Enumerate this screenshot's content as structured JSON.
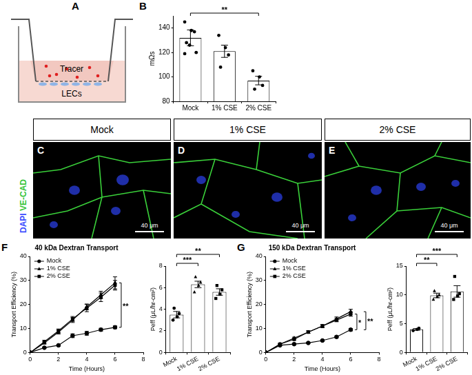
{
  "figure": {
    "panel_letters": [
      "A",
      "B",
      "C",
      "D",
      "E",
      "F",
      "G"
    ],
    "diagram": {
      "top_label": "Tracer",
      "bottom_label": "LECs"
    },
    "images": [
      {
        "title": "Mock",
        "scale_bar": "40 μm"
      },
      {
        "title": "1% CSE",
        "scale_bar": "40 μm"
      },
      {
        "title": "2% CSE",
        "scale_bar": "40 μm"
      }
    ],
    "stain_label": [
      {
        "text": "DAPI",
        "color": "#3a4bff"
      },
      {
        "text": "VE-CAD",
        "color": "#35c43a"
      }
    ]
  },
  "chart_data": [
    {
      "type": "bar",
      "y_label": "mΩs",
      "categories": [
        "Mock",
        "1% CSE",
        "2% CSE"
      ],
      "values": [
        132,
        121,
        97
      ],
      "errors": [
        6.5,
        5,
        3.5
      ],
      "points": [
        {
          "category": "Mock",
          "marker": "circle",
          "values": [
            145,
            138,
            137,
            128,
            126,
            120,
            119
          ]
        },
        {
          "category": "1% CSE",
          "marker": "circle",
          "values": [
            134,
            124,
            118,
            108
          ]
        },
        {
          "category": "2% CSE",
          "marker": "circle",
          "values": [
            105,
            100,
            93,
            90
          ]
        }
      ],
      "color": "#ffffff",
      "ylim": [
        80,
        150
      ],
      "yticks": [
        80,
        100,
        120,
        140
      ],
      "grid": false,
      "annotations": [
        {
          "text": "**",
          "from": "Mock",
          "to": "2% CSE"
        }
      ]
    },
    {
      "type": "line",
      "title": "40 kDa Dextran Transport",
      "x_label": "Time (Hours)",
      "y_label": "Transport Efficiency (%)",
      "x": [
        0,
        1,
        2,
        3,
        4,
        5,
        6
      ],
      "series": [
        {
          "name": "Mock",
          "marker": "circle",
          "color": "#000000",
          "values": [
            0,
            2,
            3,
            7,
            8,
            9.5,
            10.5
          ],
          "errors": [
            0,
            0.3,
            0.4,
            0.8,
            0.8,
            0.6,
            0.6
          ]
        },
        {
          "name": "1% CSE",
          "marker": "triangle",
          "color": "#000000",
          "values": [
            0,
            4,
            8.5,
            13.5,
            19,
            24,
            29
          ],
          "errors": [
            0,
            0.5,
            0.8,
            1,
            1.2,
            1.5,
            2.5
          ]
        },
        {
          "name": "2% CSE",
          "marker": "square",
          "color": "#000000",
          "values": [
            0,
            4.5,
            9,
            14,
            18.5,
            23,
            28
          ],
          "errors": [
            0,
            0.6,
            0.8,
            1,
            1.5,
            1.8,
            2
          ]
        }
      ],
      "xlim": [
        0,
        8
      ],
      "xticks": [
        0,
        2,
        4,
        6,
        8
      ],
      "ylim": [
        0,
        40
      ],
      "yticks": [
        0,
        10,
        20,
        30,
        40
      ],
      "legend": "upper left",
      "grid": false,
      "annotations": [
        {
          "text": "**",
          "from": "1% CSE",
          "to": "Mock"
        }
      ]
    },
    {
      "type": "bar",
      "y_label": "Peff (μL/hr-cm²)",
      "categories": [
        "Mock",
        "1% CSE",
        "2% CSE"
      ],
      "values": [
        3.5,
        6.3,
        5.6
      ],
      "errors": [
        0.3,
        0.3,
        0.3
      ],
      "points": [
        {
          "category": "Mock",
          "marker": "circle",
          "values": [
            3.0,
            3.3,
            3.6,
            4.1
          ]
        },
        {
          "category": "1% CSE",
          "marker": "triangle",
          "values": [
            5.6,
            6.2,
            6.5,
            7.0
          ]
        },
        {
          "category": "2% CSE",
          "marker": "square",
          "values": [
            5.0,
            5.4,
            5.8,
            6.2
          ]
        }
      ],
      "color": "#ffffff",
      "ylim": [
        0,
        8
      ],
      "yticks": [
        0,
        2,
        4,
        6,
        8
      ],
      "grid": false,
      "annotations": [
        {
          "text": "***",
          "from": "Mock",
          "to": "1% CSE"
        },
        {
          "text": "**",
          "from": "Mock",
          "to": "2% CSE"
        }
      ]
    },
    {
      "type": "line",
      "title": "150 kDa Dextran Transport",
      "x_label": "Time (Hours)",
      "y_label": "Transport Efficiency (%)",
      "x": [
        0,
        1,
        2,
        3,
        4,
        5,
        6
      ],
      "series": [
        {
          "name": "Mock",
          "marker": "circle",
          "color": "#000000",
          "values": [
            0,
            3,
            3.5,
            4,
            5,
            6.5,
            9.5
          ],
          "errors": [
            0,
            0.2,
            0.3,
            0.3,
            0.4,
            0.4,
            0.5
          ]
        },
        {
          "name": "1% CSE",
          "marker": "triangle",
          "color": "#000000",
          "values": [
            0,
            3.5,
            6,
            8.5,
            11,
            14,
            17
          ],
          "errors": [
            0,
            0.3,
            0.4,
            0.5,
            0.6,
            0.8,
            1
          ]
        },
        {
          "name": "2% CSE",
          "marker": "square",
          "color": "#000000",
          "values": [
            0,
            3.5,
            5.5,
            8.5,
            11,
            13.5,
            16
          ],
          "errors": [
            0,
            0.3,
            0.4,
            0.5,
            0.6,
            0.7,
            0.9
          ]
        }
      ],
      "xlim": [
        0,
        8
      ],
      "xticks": [
        0,
        2,
        4,
        6,
        8
      ],
      "ylim": [
        0,
        40
      ],
      "yticks": [
        0,
        10,
        20,
        30,
        40
      ],
      "legend": "upper left",
      "grid": false,
      "annotations": [
        {
          "text": "*",
          "from": "2% CSE",
          "to": "Mock"
        },
        {
          "text": "**",
          "from": "1% CSE",
          "to": "Mock"
        }
      ]
    },
    {
      "type": "bar",
      "y_label": "Peff (μL/hr-cm²)",
      "categories": [
        "Mock",
        "1% CSE",
        "2% CSE"
      ],
      "values": [
        4.0,
        9.9,
        10.6
      ],
      "errors": [
        0.15,
        0.4,
        1.0
      ],
      "points": [
        {
          "category": "Mock",
          "marker": "circle",
          "values": [
            3.8,
            4.0,
            4.2
          ]
        },
        {
          "category": "1% CSE",
          "marker": "triangle",
          "values": [
            9.2,
            9.7,
            10.0,
            10.7
          ]
        },
        {
          "category": "2% CSE",
          "marker": "square",
          "values": [
            9.2,
            9.8,
            10.2,
            13.2
          ]
        }
      ],
      "color": "#ffffff",
      "ylim": [
        0,
        15
      ],
      "yticks": [
        0,
        5,
        10,
        15
      ],
      "grid": false,
      "annotations": [
        {
          "text": "**",
          "from": "Mock",
          "to": "1% CSE"
        },
        {
          "text": "***",
          "from": "Mock",
          "to": "2% CSE"
        }
      ]
    }
  ]
}
